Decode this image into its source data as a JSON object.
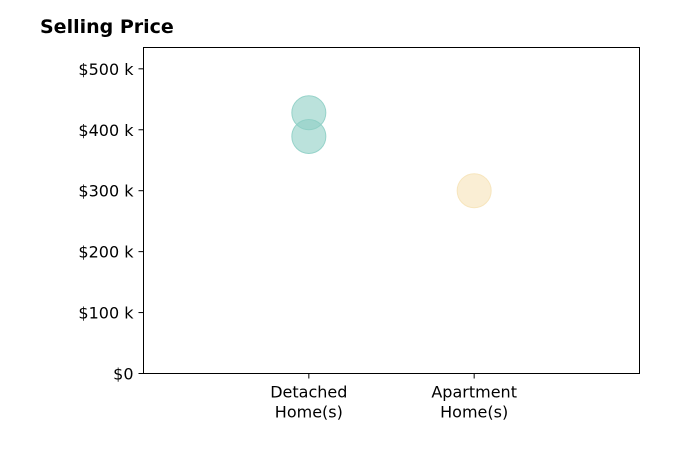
{
  "chart_data": {
    "type": "scatter",
    "title": "Selling Price",
    "xlabel": "",
    "ylabel": "",
    "categories": [
      [
        "Detached",
        "Home(s)"
      ],
      [
        "Apartment",
        "Home(s)"
      ]
    ],
    "x_range": [
      0,
      3
    ],
    "y_ticks": [
      "$0",
      "$100 k",
      "$200 k",
      "$300 k",
      "$400 k",
      "$500 k"
    ],
    "y_tick_values": [
      0,
      100000,
      200000,
      300000,
      400000,
      500000
    ],
    "ylim": [
      0,
      535000
    ],
    "grid": false,
    "points": [
      {
        "category_index": 0,
        "value": 428000,
        "color": "#8ECFC5"
      },
      {
        "category_index": 0,
        "value": 389000,
        "color": "#8ECFC5"
      },
      {
        "category_index": 1,
        "value": 300000,
        "color": "#F6E3B8"
      }
    ],
    "marker_opacity": 0.6
  }
}
